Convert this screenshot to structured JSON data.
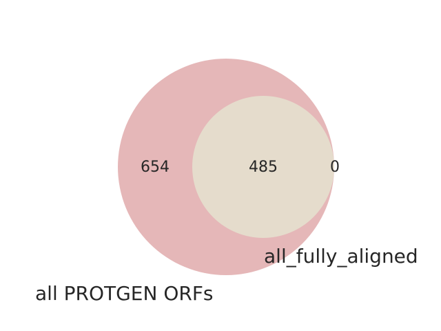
{
  "diagram": {
    "type": "venn2",
    "sets": [
      {
        "name": "all PROTGEN ORFs",
        "color": "#e5b7b8"
      },
      {
        "name": "all_fully_aligned",
        "color": "#e5dccc"
      }
    ],
    "counts": {
      "only_a": "654",
      "both": "485",
      "only_b": "0"
    }
  }
}
